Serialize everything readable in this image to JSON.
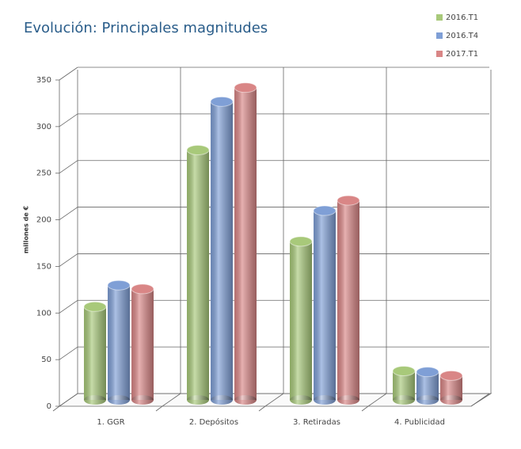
{
  "chart_data": {
    "type": "bar3d",
    "title": "Evolución: Principales magnitudes",
    "y_label": "millones de €",
    "categories": [
      "1. GGR",
      "2. Depósitos",
      "3. Retiradas",
      "4. Publicidad"
    ],
    "series": [
      {
        "name": "2016.T1",
        "color": "#a8c97a",
        "values": [
          100,
          268,
          170,
          31
        ]
      },
      {
        "name": "2016.T4",
        "color": "#7f9fd6",
        "values": [
          123,
          320,
          203,
          30
        ]
      },
      {
        "name": "2017.T1",
        "color": "#d98686",
        "values": [
          119,
          335,
          214,
          26
        ]
      }
    ],
    "ylim": [
      0,
      350
    ],
    "yticks": [
      0,
      50,
      100,
      150,
      200,
      250,
      300,
      350
    ],
    "grid": true,
    "legend": "top-right"
  }
}
